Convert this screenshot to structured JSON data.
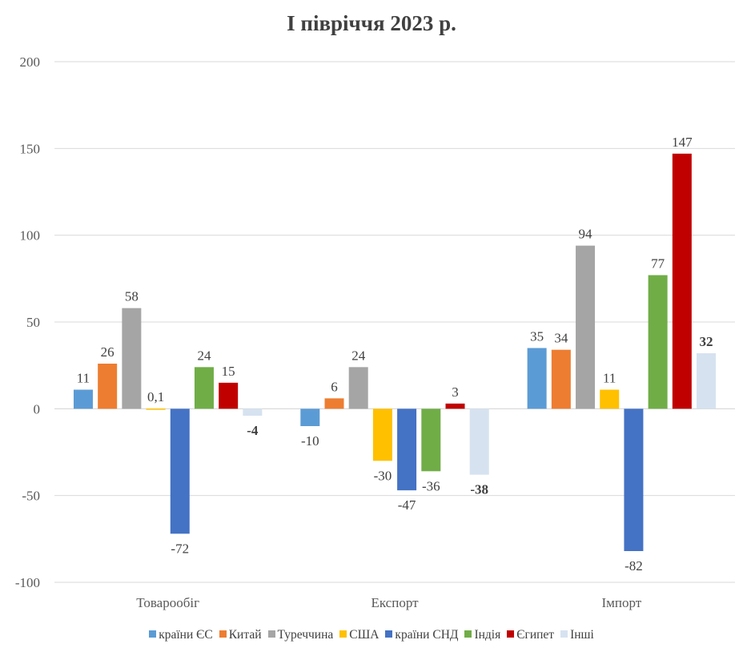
{
  "chart_data": {
    "type": "bar",
    "title": "І півріччя 2023 р.",
    "xlabel": "",
    "ylabel": "",
    "ylim": [
      -100,
      200
    ],
    "yticks": [
      200,
      150,
      100,
      50,
      0,
      -50,
      -100
    ],
    "categories": [
      "Товарообіг",
      "Експорт",
      "Імпорт"
    ],
    "grid": true,
    "legend_position": "bottom",
    "series": [
      {
        "name": "країни ЄС",
        "color": "#5b9bd5",
        "values": [
          11,
          -10,
          35
        ],
        "labels": [
          "11",
          "-10",
          "35"
        ]
      },
      {
        "name": "Китай",
        "color": "#ed7d31",
        "values": [
          26,
          6,
          34
        ],
        "labels": [
          "26",
          "6",
          "34"
        ]
      },
      {
        "name": "Туреччина",
        "color": "#a5a5a5",
        "values": [
          58,
          24,
          94
        ],
        "labels": [
          "58",
          "24",
          "94"
        ]
      },
      {
        "name": "США",
        "color": "#ffc000",
        "values": [
          0.1,
          -30,
          11
        ],
        "labels": [
          "0,1",
          "-30",
          "11"
        ]
      },
      {
        "name": "країни СНД",
        "color": "#4472c4",
        "values": [
          -72,
          -47,
          -82
        ],
        "labels": [
          "-72",
          "-47",
          "-82"
        ]
      },
      {
        "name": "Індія",
        "color": "#70ad47",
        "values": [
          24,
          -36,
          77
        ],
        "labels": [
          "24",
          "-36",
          "77"
        ]
      },
      {
        "name": "Єгипет",
        "color": "#c00000",
        "values": [
          15,
          3,
          147
        ],
        "labels": [
          "15",
          "3",
          "147"
        ]
      },
      {
        "name": "Інші",
        "color": "#d6e2f0",
        "values": [
          -4,
          -38,
          32
        ],
        "labels": [
          "-4",
          "-38",
          "32"
        ],
        "labels_bold": true
      }
    ]
  }
}
